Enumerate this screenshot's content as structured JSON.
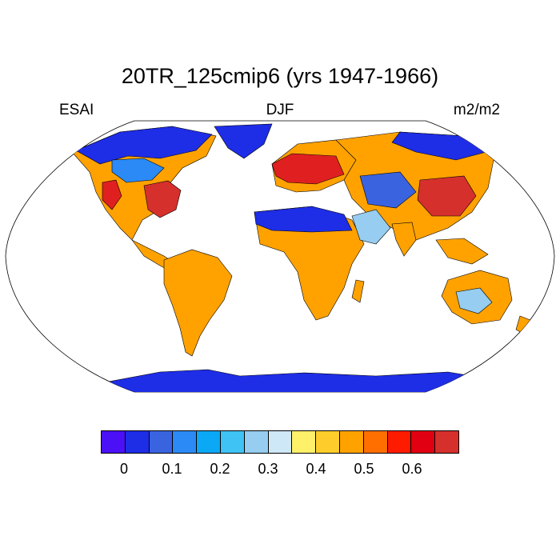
{
  "title": "20TR_125cmip6 (yrs 1947-1966)",
  "left_label": "ESAI",
  "center_label": "DJF",
  "right_label": "m2/m2",
  "projection": "Robinson",
  "colors": {
    "land_low": "#1e2de6",
    "land_mid": "#ffa200",
    "land_high": "#e02020",
    "ocean": "#ffffff",
    "coastline": "#000000"
  },
  "colorbar": {
    "colors": [
      "#4b10f5",
      "#1e2de6",
      "#3a63e0",
      "#2b8af5",
      "#0aa8f5",
      "#3fc3f5",
      "#96cdf0",
      "#cfe8f8",
      "#fff06a",
      "#ffcd2b",
      "#ffa200",
      "#ff6f00",
      "#ff1b00",
      "#e10011",
      "#d6302c"
    ],
    "tick_labels": [
      "0",
      "0.1",
      "0.2",
      "0.3",
      "0.4",
      "0.5",
      "0.6"
    ]
  }
}
